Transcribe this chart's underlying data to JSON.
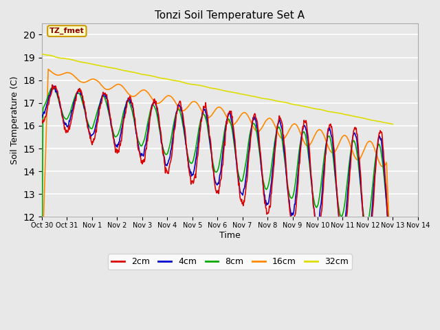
{
  "title": "Tonzi Soil Temperature Set A",
  "xlabel": "Time",
  "ylabel": "Soil Temperature (C)",
  "ylim": [
    12.0,
    20.5
  ],
  "yticks": [
    12.0,
    13.0,
    14.0,
    15.0,
    16.0,
    17.0,
    18.0,
    19.0,
    20.0
  ],
  "x_labels": [
    "Oct 30",
    "Oct 31",
    "Nov 1",
    "Nov 2",
    "Nov 3",
    "Nov 4",
    "Nov 5",
    "Nov 6",
    "Nov 7",
    "Nov 8",
    "Nov 9",
    "Nov 10",
    "Nov 11",
    "Nov 12",
    "Nov 13",
    "Nov 14"
  ],
  "annotation_text": "TZ_fmet",
  "annotation_bg": "#ffffcc",
  "annotation_border": "#cc9900",
  "annotation_text_color": "#880000",
  "colors": {
    "2cm": "#dd0000",
    "4cm": "#0000cc",
    "8cm": "#00aa00",
    "16cm": "#ff8800",
    "32cm": "#dddd00"
  },
  "legend_labels": [
    "2cm",
    "4cm",
    "8cm",
    "16cm",
    "32cm"
  ],
  "plot_bg": "#e8e8e8",
  "fig_bg": "#e8e8e8",
  "grid_color": "#ffffff",
  "n_points": 672
}
